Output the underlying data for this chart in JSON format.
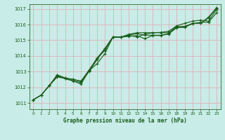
{
  "title": "Graphe pression niveau de la mer (hPa)",
  "background_color": "#c8ece8",
  "grid_color": "#e0b0b8",
  "line_color": "#1a5c1a",
  "xlim": [
    -0.5,
    23.5
  ],
  "ylim": [
    1010.6,
    1017.3
  ],
  "xticks": [
    0,
    1,
    2,
    3,
    4,
    5,
    6,
    7,
    8,
    9,
    10,
    11,
    12,
    13,
    14,
    15,
    16,
    17,
    18,
    19,
    20,
    21,
    22,
    23
  ],
  "yticks": [
    1011,
    1012,
    1013,
    1014,
    1015,
    1016,
    1017
  ],
  "series": [
    [
      1011.2,
      1011.5,
      1012.1,
      1012.8,
      1012.6,
      1012.5,
      1012.4,
      1013.1,
      1013.85,
      1014.35,
      1015.2,
      1015.2,
      1015.25,
      1015.3,
      1015.1,
      1015.3,
      1015.3,
      1015.4,
      1015.8,
      1015.85,
      1016.05,
      1016.15,
      1016.15,
      1016.75
    ],
    [
      1011.2,
      1011.5,
      1012.1,
      1012.7,
      1012.55,
      1012.42,
      1012.3,
      1013.05,
      1013.5,
      1014.15,
      1015.2,
      1015.2,
      1015.3,
      1015.22,
      1015.38,
      1015.48,
      1015.5,
      1015.58,
      1015.92,
      1016.08,
      1016.22,
      1016.28,
      1016.22,
      1016.95
    ],
    [
      1011.2,
      1011.5,
      1012.1,
      1012.65,
      1012.58,
      1012.5,
      1012.38,
      1013.0,
      1013.75,
      1014.45,
      1015.2,
      1015.2,
      1015.38,
      1015.48,
      1015.48,
      1015.48,
      1015.48,
      1015.48,
      1015.88,
      1015.88,
      1016.08,
      1016.08,
      1016.48,
      1017.08
    ],
    [
      1011.2,
      1011.5,
      1012.1,
      1012.75,
      1012.55,
      1012.4,
      1012.2,
      1013.05,
      1013.85,
      1014.48,
      1015.22,
      1015.18,
      1015.32,
      1015.42,
      1015.32,
      1015.32,
      1015.32,
      1015.42,
      1015.82,
      1015.82,
      1016.08,
      1016.08,
      1016.42,
      1017.02
    ]
  ]
}
